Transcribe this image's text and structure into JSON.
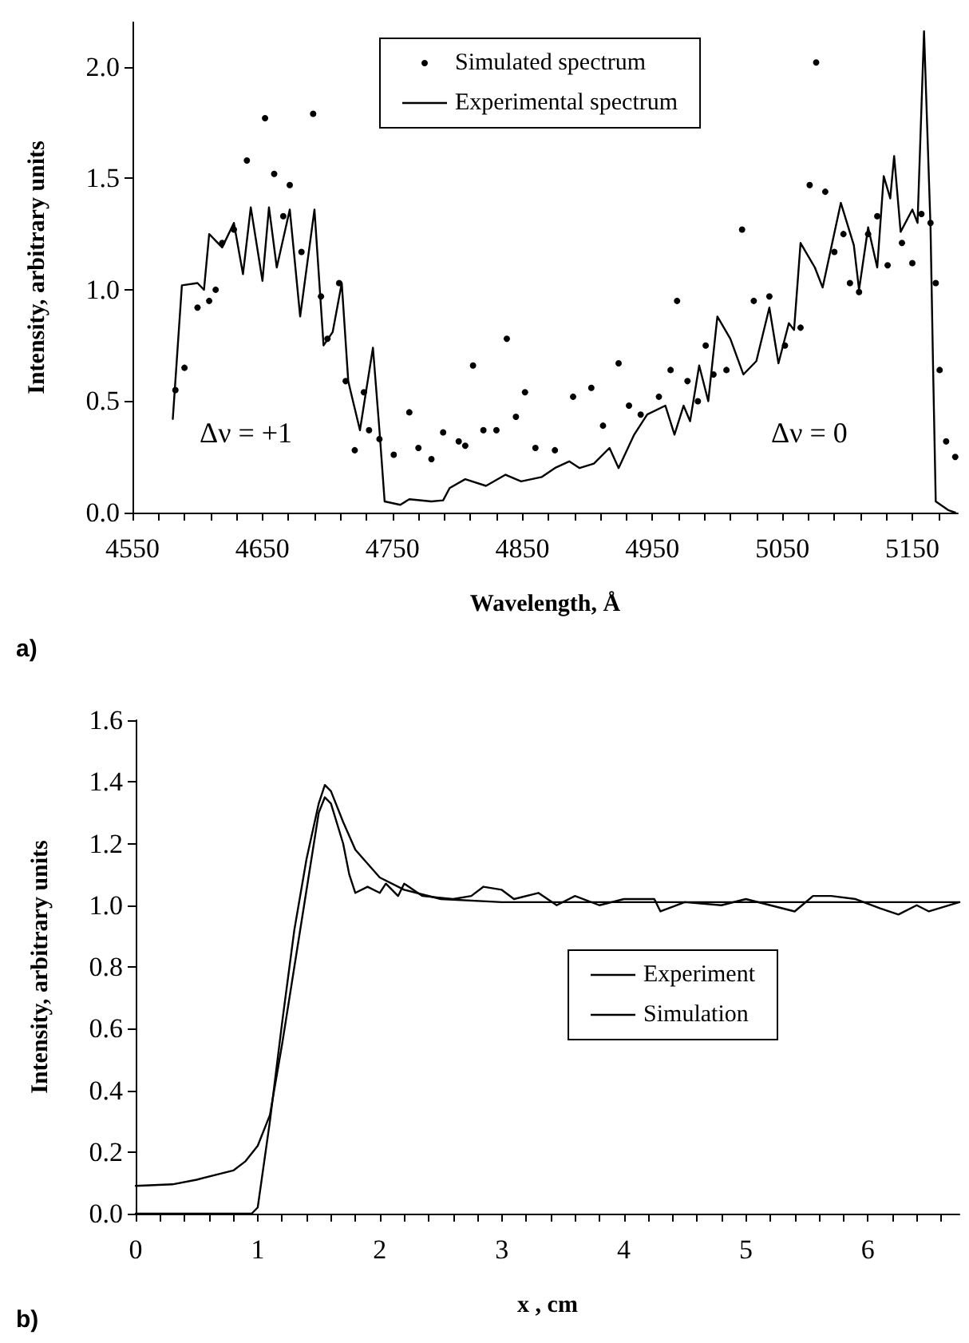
{
  "chart_data": [
    {
      "type": "line",
      "xlabel": "Wavelength, Å",
      "ylabel": "Intensity, arbitrary units",
      "legend": "top",
      "grid": false,
      "xlim": [
        4550,
        5185
      ],
      "ylim": [
        0,
        2.2
      ],
      "xticks": [
        4550,
        {
          "value": 4570,
          "label": null
        },
        {
          "value": 4590,
          "label": null
        },
        {
          "value": 4610,
          "label": null
        },
        {
          "value": 4630,
          "label": null
        },
        4650,
        {
          "value": 4670,
          "label": null
        },
        {
          "value": 4690,
          "label": null
        },
        {
          "value": 4710,
          "label": null
        },
        {
          "value": 4730,
          "label": null
        },
        4750,
        {
          "value": 4770,
          "label": null
        },
        {
          "value": 4790,
          "label": null
        },
        {
          "value": 4810,
          "label": null
        },
        {
          "value": 4830,
          "label": null
        },
        4850,
        {
          "value": 4870,
          "label": null
        },
        {
          "value": 4890,
          "label": null
        },
        {
          "value": 4910,
          "label": null
        },
        {
          "value": 4930,
          "label": null
        },
        4950,
        {
          "value": 4970,
          "label": null
        },
        {
          "value": 4990,
          "label": null
        },
        {
          "value": 5010,
          "label": null
        },
        {
          "value": 5030,
          "label": null
        },
        5050,
        {
          "value": 5070,
          "label": null
        },
        {
          "value": 5090,
          "label": null
        },
        {
          "value": 5110,
          "label": null
        },
        {
          "value": 5130,
          "label": null
        },
        5150,
        {
          "value": 5170,
          "label": null
        }
      ],
      "yticks": [
        {
          "value": 0,
          "label": "0.0"
        },
        {
          "value": 0.5,
          "label": "0.5"
        },
        {
          "value": 1,
          "label": "1.0"
        },
        {
          "value": 1.5,
          "label": "1.5"
        },
        {
          "value": 2,
          "label": "2.0"
        }
      ],
      "annotations": [
        "Δν = +1",
        "Δν = 0",
        "a)"
      ],
      "series": [
        {
          "name": "Simulated spectrum",
          "type": "scatter",
          "marker": "circle",
          "color": "#000000",
          "x": [
            4583,
            4590,
            4600,
            4609,
            4614,
            4619,
            4628,
            4638,
            4652,
            4659,
            4666,
            4671,
            4680,
            4689,
            4695,
            4700,
            4709,
            4714,
            4721,
            4728,
            4732,
            4740,
            4751,
            4763,
            4770,
            4780,
            4789,
            4801,
            4806,
            4812,
            4820,
            4830,
            4838,
            4845,
            4852,
            4860,
            4875,
            4889,
            4903,
            4912,
            4924,
            4932,
            4941,
            4955,
            4964,
            4969,
            4977,
            4985,
            4991,
            4997,
            5007,
            5019,
            5028,
            5040,
            5052,
            5064,
            5071,
            5076,
            5083,
            5090,
            5097,
            5102,
            5109,
            5116,
            5123,
            5131,
            5142,
            5150,
            5157,
            5164,
            5168,
            5171,
            5176,
            5183
          ],
          "values": [
            0.55,
            0.65,
            0.92,
            0.95,
            1.0,
            1.21,
            1.27,
            1.58,
            1.77,
            1.52,
            1.33,
            1.47,
            1.17,
            1.79,
            0.97,
            0.78,
            1.03,
            0.59,
            0.28,
            0.54,
            0.37,
            0.33,
            0.26,
            0.45,
            0.29,
            0.24,
            0.36,
            0.32,
            0.3,
            0.66,
            0.37,
            0.37,
            0.78,
            0.43,
            0.54,
            0.29,
            0.28,
            0.52,
            0.56,
            0.39,
            0.67,
            0.48,
            0.44,
            0.52,
            0.64,
            0.95,
            0.59,
            0.5,
            0.75,
            0.62,
            0.64,
            1.27,
            0.95,
            0.97,
            0.75,
            0.83,
            1.47,
            2.02,
            1.44,
            1.17,
            1.25,
            1.03,
            0.99,
            1.25,
            1.33,
            1.11,
            1.21,
            1.12,
            1.34,
            1.3,
            1.03,
            0.64,
            0.32,
            0.25
          ]
        },
        {
          "name": "Experimental spectrum",
          "type": "line",
          "marker": "none",
          "line_style": "solid",
          "color": "#000000",
          "x": [
            4581,
            4588,
            4600,
            4605,
            4609,
            4619,
            4628,
            4635,
            4641,
            4650,
            4655,
            4661,
            4671,
            4679,
            4690,
            4697,
            4704,
            4711,
            4716,
            4718,
            4725,
            4735,
            4740,
            4744,
            4756,
            4763,
            4780,
            4789,
            4794,
            4806,
            4822,
            4837,
            4849,
            4865,
            4875,
            4886,
            4894,
            4905,
            4917,
            4924,
            4936,
            4946,
            4960,
            4967,
            4974,
            4979,
            4986,
            4993,
            5000,
            5010,
            5020,
            5030,
            5040,
            5047,
            5055,
            5059,
            5064,
            5075,
            5081,
            5095,
            5105,
            5109,
            5116,
            5123,
            5128,
            5133,
            5136,
            5141,
            5150,
            5154,
            5159,
            5164,
            5166,
            5168,
            5178,
            5183
          ],
          "values": [
            0.42,
            1.02,
            1.03,
            1.0,
            1.25,
            1.19,
            1.3,
            1.07,
            1.37,
            1.04,
            1.37,
            1.1,
            1.36,
            0.88,
            1.36,
            0.75,
            0.81,
            1.03,
            0.59,
            0.54,
            0.37,
            0.74,
            0.37,
            0.05,
            0.035,
            0.06,
            0.05,
            0.055,
            0.11,
            0.15,
            0.12,
            0.17,
            0.14,
            0.16,
            0.2,
            0.23,
            0.2,
            0.22,
            0.29,
            0.2,
            0.35,
            0.44,
            0.48,
            0.35,
            0.48,
            0.41,
            0.66,
            0.5,
            0.88,
            0.78,
            0.62,
            0.68,
            0.92,
            0.67,
            0.85,
            0.82,
            1.21,
            1.1,
            1.01,
            1.39,
            1.2,
            1.0,
            1.28,
            1.1,
            1.51,
            1.41,
            1.6,
            1.26,
            1.36,
            1.3,
            2.16,
            1.28,
            0.64,
            0.05,
            0.01,
            0.0
          ]
        }
      ]
    },
    {
      "type": "line",
      "xlabel": "x , cm",
      "ylabel": "Intensity, arbitrary units",
      "legend": "right",
      "grid": false,
      "xlim": [
        0,
        6.75
      ],
      "ylim": [
        0,
        1.6
      ],
      "xticks": [
        0,
        {
          "value": 0.2,
          "label": null
        },
        {
          "value": 0.4,
          "label": null
        },
        {
          "value": 0.6,
          "label": null
        },
        {
          "value": 0.8,
          "label": null
        },
        1,
        {
          "value": 1.2,
          "label": null
        },
        {
          "value": 1.4,
          "label": null
        },
        {
          "value": 1.6,
          "label": null
        },
        {
          "value": 1.8,
          "label": null
        },
        2,
        {
          "value": 2.2,
          "label": null
        },
        {
          "value": 2.4,
          "label": null
        },
        {
          "value": 2.6,
          "label": null
        },
        {
          "value": 2.8,
          "label": null
        },
        3,
        {
          "value": 3.2,
          "label": null
        },
        {
          "value": 3.4,
          "label": null
        },
        {
          "value": 3.6,
          "label": null
        },
        {
          "value": 3.8,
          "label": null
        },
        4,
        {
          "value": 4.2,
          "label": null
        },
        {
          "value": 4.4,
          "label": null
        },
        {
          "value": 4.6,
          "label": null
        },
        {
          "value": 4.8,
          "label": null
        },
        5,
        {
          "value": 5.2,
          "label": null
        },
        {
          "value": 5.4,
          "label": null
        },
        {
          "value": 5.6,
          "label": null
        },
        {
          "value": 5.8,
          "label": null
        },
        6,
        {
          "value": 6.2,
          "label": null
        },
        {
          "value": 6.4,
          "label": null
        },
        {
          "value": 6.6,
          "label": null
        }
      ],
      "yticks": [
        {
          "value": 0,
          "label": "0.0"
        },
        {
          "value": 0.2,
          "label": "0.2"
        },
        {
          "value": 0.4,
          "label": "0.4"
        },
        {
          "value": 0.6,
          "label": "0.6"
        },
        {
          "value": 0.8,
          "label": "0.8"
        },
        {
          "value": 1,
          "label": "1.0"
        },
        {
          "value": 1.2,
          "label": "1.2"
        },
        {
          "value": 1.4,
          "label": "1.4"
        },
        {
          "value": 1.6,
          "label": "1.6"
        }
      ],
      "annotations": [
        "b)"
      ],
      "series": [
        {
          "name": "Experiment",
          "line_style": "solid",
          "marker": "none",
          "color": "#000000",
          "x": [
            0,
            0.3,
            0.5,
            0.8,
            0.9,
            1.0,
            1.1,
            1.2,
            1.3,
            1.4,
            1.5,
            1.55,
            1.6,
            1.7,
            1.75,
            1.8,
            1.9,
            2.0,
            2.05,
            2.15,
            2.2,
            2.35,
            2.6,
            2.75,
            2.85,
            3.0,
            3.1,
            3.3,
            3.45,
            3.6,
            3.8,
            4.0,
            4.25,
            4.3,
            4.5,
            4.8,
            5.0,
            5.2,
            5.4,
            5.55,
            5.7,
            5.9,
            6.1,
            6.25,
            6.4,
            6.5,
            6.75
          ],
          "values": [
            0.09,
            0.095,
            0.11,
            0.14,
            0.17,
            0.22,
            0.32,
            0.55,
            0.8,
            1.05,
            1.3,
            1.35,
            1.33,
            1.2,
            1.1,
            1.04,
            1.06,
            1.04,
            1.07,
            1.03,
            1.07,
            1.03,
            1.02,
            1.03,
            1.06,
            1.05,
            1.02,
            1.04,
            1.0,
            1.03,
            1.0,
            1.02,
            1.02,
            0.98,
            1.01,
            1.0,
            1.02,
            1.0,
            0.98,
            1.03,
            1.03,
            1.02,
            0.99,
            0.97,
            1.0,
            0.98,
            1.01
          ]
        },
        {
          "name": "Simulation",
          "line_style": "solid",
          "marker": "none",
          "color": "#000000",
          "x": [
            0,
            0.95,
            1.0,
            1.1,
            1.2,
            1.3,
            1.4,
            1.5,
            1.55,
            1.6,
            1.7,
            1.8,
            2.0,
            2.2,
            2.5,
            3,
            4,
            5,
            6.75
          ],
          "values": [
            0,
            0,
            0.02,
            0.3,
            0.62,
            0.92,
            1.15,
            1.33,
            1.39,
            1.37,
            1.27,
            1.18,
            1.09,
            1.05,
            1.02,
            1.01,
            1.01,
            1.01,
            1.01
          ]
        }
      ]
    }
  ]
}
